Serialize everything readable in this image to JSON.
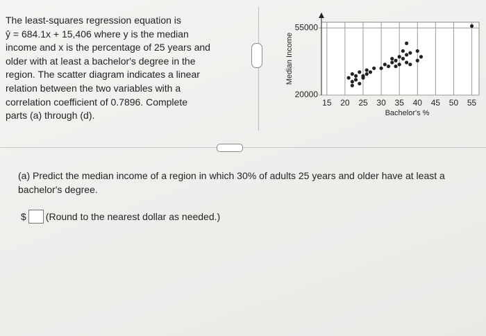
{
  "intro": {
    "lines": [
      "The least-squares regression equation is",
      "ŷ = 684.1x + 15,406 where y is the median",
      "income and x is the percentage of 25 years and",
      "older with at least a bachelor's degree in the",
      "region. The scatter diagram indicates a linear",
      "relation between the two variables with a",
      "correlation coefficient of 0.7896. Complete",
      "parts (a) through (d)."
    ]
  },
  "chart_data": {
    "type": "scatter",
    "x_label": "Bachelor's %",
    "y_label": "Median Income",
    "color": "#222222",
    "grid": true,
    "xlim": [
      13.5,
      57
    ],
    "ylim": [
      20000,
      58000
    ],
    "xticks": [
      15,
      20,
      25,
      30,
      35,
      40,
      45,
      50,
      55
    ],
    "yticks": [
      20000,
      55000
    ],
    "x": [
      21,
      22,
      22,
      23,
      23,
      24,
      24,
      25,
      25,
      26,
      26,
      27,
      28,
      22,
      30,
      31,
      32,
      33,
      34,
      35,
      35,
      36,
      37,
      33,
      34,
      36,
      37,
      38,
      37,
      38,
      40,
      41,
      40,
      55
    ],
    "values": [
      29000,
      31000,
      27000,
      30000,
      28000,
      32000,
      26000,
      30000,
      29000,
      31000,
      33000,
      32000,
      34000,
      25000,
      34000,
      36000,
      35000,
      37000,
      38000,
      36000,
      40000,
      39000,
      41000,
      39000,
      35000,
      43000,
      37000,
      36000,
      47000,
      42000,
      43000,
      40000,
      38000,
      56000
    ]
  },
  "part_a": {
    "question": "(a) Predict the median income of a region in which 30% of adults 25 years and older have at least a bachelor's degree.",
    "currency": "$",
    "hint": "(Round to the nearest dollar as needed.)"
  }
}
